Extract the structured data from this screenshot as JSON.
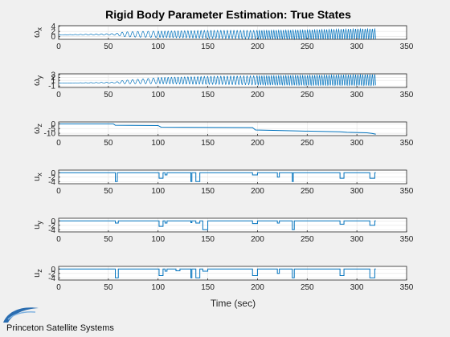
{
  "figure": {
    "title": "Rigid Body Parameter Estimation: True States",
    "xlabel": "Time (sec)",
    "brand": "Princeton Satellite Systems",
    "line_color": "#0072BD"
  },
  "chart_data": [
    {
      "type": "line",
      "ylabel_base": "ω",
      "ylabel_sub": "x",
      "x_ticks": [
        0,
        50,
        100,
        150,
        200,
        250,
        300,
        350
      ],
      "xlim": [
        0,
        350
      ],
      "y_ticks": [
        0,
        2,
        4
      ],
      "ylim": [
        -1,
        4.2
      ],
      "series": [
        {
          "x": [
            0,
            57,
            65,
            80,
            95,
            100,
            150,
            200,
            250,
            300,
            319
          ],
          "y_center": [
            0.7,
            0.9,
            0.9,
            0.9,
            0.9,
            0.9,
            0.9,
            0.8,
            0.8,
            1.0,
            1.0
          ],
          "y_amp": [
            0,
            0.3,
            0.9,
            1.1,
            1.2,
            1.2,
            1.5,
            1.6,
            1.8,
            2.0,
            2.0
          ]
        }
      ]
    },
    {
      "type": "line",
      "ylabel_base": "ω",
      "ylabel_sub": "y",
      "x_ticks": [
        0,
        50,
        100,
        150,
        200,
        250,
        300,
        350
      ],
      "xlim": [
        0,
        350
      ],
      "y_ticks": [
        -1,
        1,
        2,
        3
      ],
      "ylim": [
        -1.5,
        3.3
      ],
      "series": [
        {
          "x": [
            0,
            57,
            65,
            80,
            95,
            100,
            150,
            200,
            250,
            300,
            319
          ],
          "y_center": [
            0,
            0.2,
            0.4,
            0.6,
            0.8,
            0.9,
            1.0,
            1.0,
            1.0,
            1.1,
            1.1
          ],
          "y_amp": [
            0,
            0.2,
            0.6,
            0.8,
            1.0,
            1.1,
            1.4,
            1.6,
            1.8,
            1.9,
            2.0
          ]
        }
      ]
    },
    {
      "type": "line",
      "ylabel_base": "ω",
      "ylabel_sub": "z",
      "x_ticks": [
        0,
        50,
        100,
        150,
        200,
        250,
        300,
        350
      ],
      "xlim": [
        0,
        350
      ],
      "y_ticks": [
        0,
        -5,
        -10
      ],
      "ylim": [
        -12.5,
        2
      ],
      "series": [
        {
          "x": [
            0,
            55,
            57,
            100,
            103,
            195,
            198,
            238,
            283,
            290,
            310,
            315,
            319
          ],
          "y": [
            0,
            0,
            -1.5,
            -1.8,
            -3.5,
            -4,
            -6.5,
            -7.5,
            -8.5,
            -9,
            -9.5,
            -10.2,
            -11
          ]
        }
      ]
    },
    {
      "type": "line",
      "ylabel_base": "u",
      "ylabel_sub": "x",
      "x_ticks": [
        0,
        50,
        100,
        150,
        200,
        250,
        300,
        350
      ],
      "xlim": [
        0,
        350
      ],
      "y_ticks": [
        0,
        -2,
        -4
      ],
      "ylim": [
        -5,
        1.2
      ],
      "series": [
        {
          "pulses": [
            [
              57,
              59,
              -4
            ],
            [
              101,
              105,
              -2.5
            ],
            [
              107,
              109,
              -1
            ],
            [
              133,
              134,
              -4
            ],
            [
              138,
              142,
              -4
            ],
            [
              195,
              200,
              -1
            ],
            [
              220,
              222,
              -2
            ],
            [
              235,
              236,
              -4
            ],
            [
              283,
              287,
              -2.5
            ],
            [
              313,
              318,
              -2.5
            ]
          ]
        }
      ]
    },
    {
      "type": "line",
      "ylabel_base": "u",
      "ylabel_sub": "y",
      "x_ticks": [
        0,
        50,
        100,
        150,
        200,
        250,
        300,
        350
      ],
      "xlim": [
        0,
        350
      ],
      "y_ticks": [
        0,
        -2,
        -4
      ],
      "ylim": [
        -5,
        1.2
      ],
      "series": [
        {
          "pulses": [
            [
              57,
              60,
              -1
            ],
            [
              101,
              105,
              -2.5
            ],
            [
              107,
              109,
              -1
            ],
            [
              133,
              134,
              -0.8
            ],
            [
              138,
              142,
              -1
            ],
            [
              145,
              150,
              -4
            ],
            [
              195,
              200,
              -1.2
            ],
            [
              220,
              222,
              -1
            ],
            [
              235,
              237,
              -4
            ],
            [
              283,
              287,
              -1.5
            ],
            [
              313,
              318,
              -2
            ]
          ]
        }
      ]
    },
    {
      "type": "line",
      "ylabel_base": "u",
      "ylabel_sub": "z",
      "x_ticks": [
        0,
        50,
        100,
        150,
        200,
        250,
        300,
        350
      ],
      "xlim": [
        0,
        350
      ],
      "y_ticks": [
        0,
        -2,
        -4
      ],
      "ylim": [
        -5,
        1.2
      ],
      "series": [
        {
          "pulses": [
            [
              57,
              60,
              -4
            ],
            [
              101,
              105,
              -3
            ],
            [
              107,
              109,
              -1
            ],
            [
              118,
              122,
              -0.8
            ],
            [
              133,
              134,
              -4
            ],
            [
              138,
              142,
              -4
            ],
            [
              145,
              150,
              -1
            ],
            [
              195,
              200,
              -3
            ],
            [
              220,
              222,
              -2
            ],
            [
              235,
              237,
              -4
            ],
            [
              283,
              287,
              -3
            ],
            [
              313,
              318,
              -4
            ]
          ]
        }
      ]
    }
  ]
}
